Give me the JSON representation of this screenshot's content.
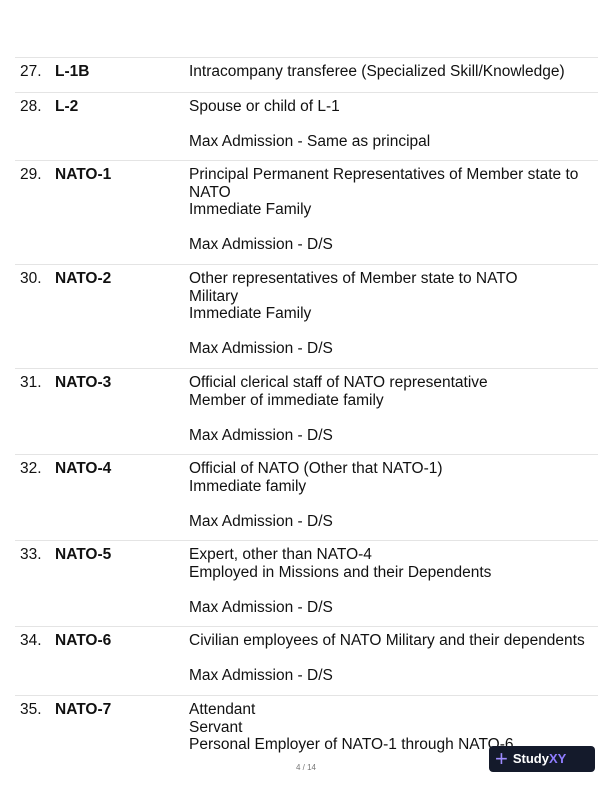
{
  "rows": [
    {
      "num": "27.",
      "code": "L-1B",
      "lines": [
        "Intracompany transferee (Specialized Skill/Knowledge)"
      ]
    },
    {
      "num": "28.",
      "code": "L-2",
      "lines": [
        "Spouse or child of L-1",
        "",
        "Max Admission - Same as principal"
      ]
    },
    {
      "num": "29.",
      "code": "NATO-1",
      "lines": [
        "Principal Permanent Representatives of Member state to",
        "NATO",
        "Immediate Family",
        "",
        "Max Admission - D/S"
      ]
    },
    {
      "num": "30.",
      "code": "NATO-2",
      "lines": [
        "Other representatives of Member state to NATO",
        "Military",
        "Immediate Family",
        "",
        "Max Admission - D/S"
      ]
    },
    {
      "num": "31.",
      "code": "NATO-3",
      "lines": [
        "Official clerical staff of NATO representative",
        "Member of immediate family",
        "",
        "Max Admission - D/S"
      ]
    },
    {
      "num": "32.",
      "code": "NATO-4",
      "lines": [
        "Official of NATO (Other that NATO-1)",
        "Immediate family",
        "",
        "Max Admission - D/S"
      ]
    },
    {
      "num": "33.",
      "code": "NATO-5",
      "lines": [
        "Expert, other than NATO-4",
        "Employed in Missions and their Dependents",
        "",
        "Max Admission - D/S"
      ]
    },
    {
      "num": "34.",
      "code": "NATO-6",
      "lines": [
        "Civilian employees of NATO Military and their dependents",
        "",
        "Max Admission - D/S"
      ]
    },
    {
      "num": "35.",
      "code": "NATO-7",
      "lines": [
        "Attendant",
        "Servant",
        "Personal Employer of NATO-1 through NATO-6"
      ]
    }
  ],
  "pager": "4 / 14",
  "badge": {
    "icon": "plus-icon",
    "text1": "Study",
    "text2": "XY",
    "accent": "#8f7cff",
    "background": "#141a2b"
  }
}
